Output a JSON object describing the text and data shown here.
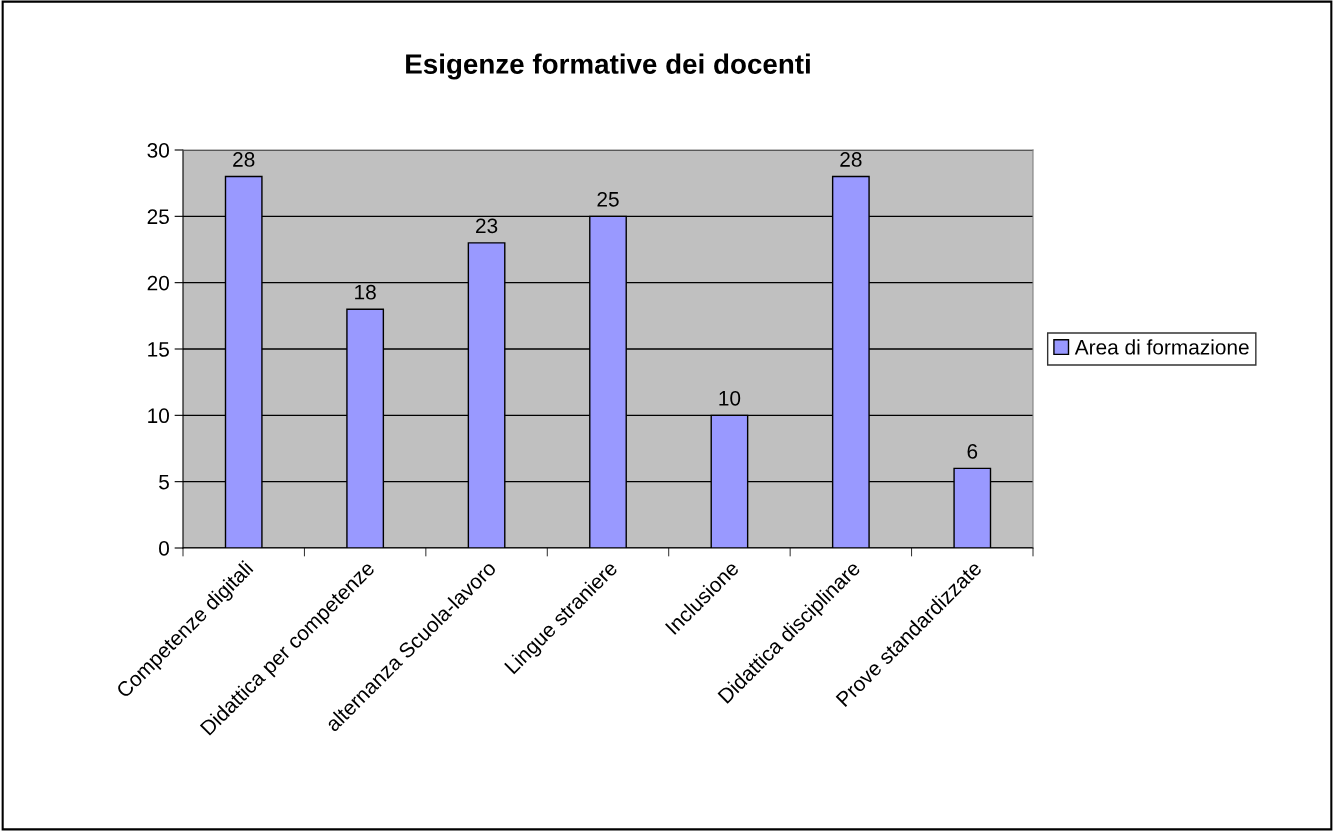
{
  "chart_data": {
    "type": "bar",
    "title": "Esigenze formative dei docenti",
    "categories": [
      "Competenze digitali",
      "Didattica per competenze",
      "alternanza Scuola-lavoro",
      "Lingue straniere",
      "Inclusione",
      "Didattica disciplinare",
      "Prove standardizzate"
    ],
    "series": [
      {
        "name": "Area di formazione",
        "color": "#9999ff",
        "values": [
          28,
          18,
          23,
          25,
          10,
          28,
          6
        ]
      }
    ],
    "ylim": [
      0,
      30
    ],
    "yticks": [
      0,
      5,
      10,
      15,
      20,
      25,
      30
    ],
    "grid": "y",
    "legend": "right",
    "data_labels": true
  }
}
